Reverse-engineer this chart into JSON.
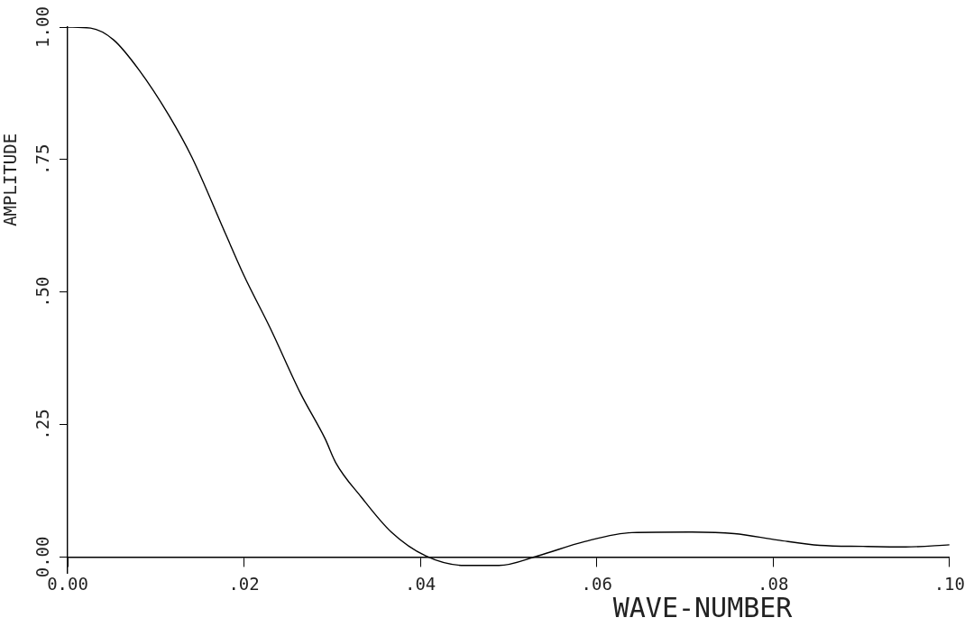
{
  "chart_data": {
    "type": "line",
    "xlabel": "WAVE-NUMBER",
    "ylabel": "AMPLITUDE",
    "x": [
      0,
      0.0026,
      0.0052,
      0.0081,
      0.0115,
      0.0141,
      0.0179,
      0.02,
      0.023,
      0.0264,
      0.0292,
      0.0304,
      0.0333,
      0.0367,
      0.0406,
      0.045,
      0.0489,
      0.0533,
      0.0586,
      0.064,
      0.0708,
      0.0756,
      0.0805,
      0.0853,
      0.0902,
      0.095,
      0.1
    ],
    "series": [
      {
        "color": "#000000",
        "values": [
          1.0,
          0.998,
          0.976,
          0.919,
          0.833,
          0.754,
          0.61,
          0.531,
          0.431,
          0.309,
          0.223,
          0.178,
          0.113,
          0.047,
          0.002,
          -0.016,
          -0.016,
          0.002,
          0.029,
          0.046,
          0.047,
          0.044,
          0.032,
          0.022,
          0.02,
          0.019,
          0.023
        ]
      }
    ],
    "xlim": [
      0,
      0.1
    ],
    "ylim": [
      -0.03,
      1.0
    ],
    "xticks": [
      {
        "value": 0,
        "label": "0.00"
      },
      {
        "value": 0.02,
        "label": ".02"
      },
      {
        "value": 0.04,
        "label": ".04"
      },
      {
        "value": 0.06,
        "label": ".06"
      },
      {
        "value": 0.08,
        "label": ".08"
      },
      {
        "value": 0.1,
        "label": ".10"
      }
    ],
    "yticks": [
      {
        "value": 0,
        "label": "0.00"
      },
      {
        "value": 0.25,
        "label": ".25"
      },
      {
        "value": 0.5,
        "label": ".50"
      },
      {
        "value": 0.75,
        "label": ".75"
      },
      {
        "value": 1,
        "label": "1.00"
      }
    ],
    "grid": false,
    "legend": false,
    "marker": "none",
    "line_style": "solid"
  }
}
